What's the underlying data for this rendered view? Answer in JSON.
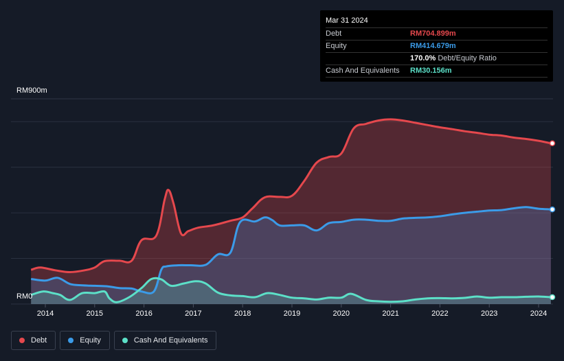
{
  "tooltip": {
    "date": "Mar 31 2024",
    "rows": [
      {
        "label": "Debt",
        "value": "RM704.899m",
        "color": "#e5484d"
      },
      {
        "label": "Equity",
        "value": "RM414.679m",
        "color": "#3b9be8"
      },
      {
        "label": "",
        "value": "170.0%",
        "unit": "Debt/Equity Ratio",
        "color": "#ffffff"
      },
      {
        "label": "Cash And Equivalents",
        "value": "RM30.156m",
        "color": "#5ce0c8"
      }
    ]
  },
  "legend": [
    {
      "label": "Debt",
      "color": "#e5484d"
    },
    {
      "label": "Equity",
      "color": "#3b9be8"
    },
    {
      "label": "Cash And Equivalents",
      "color": "#5ce0c8"
    }
  ],
  "chart_data": {
    "type": "area",
    "title": "",
    "ylabel": "",
    "xlabel": "",
    "y_top_label": "RM900m",
    "y_bottom_label": "RM0",
    "ylim": [
      0,
      900
    ],
    "xlim": [
      2013.3,
      2024.3
    ],
    "x_ticks": [
      2014,
      2015,
      2016,
      2017,
      2018,
      2019,
      2020,
      2021,
      2022,
      2023,
      2024
    ],
    "gridlines": [
      0,
      200,
      400,
      600,
      800
    ],
    "series": [
      {
        "name": "Debt",
        "color": "#e5484d",
        "x": [
          2013.71,
          2013.9,
          2014.2,
          2014.5,
          2014.8,
          2015.0,
          2015.2,
          2015.5,
          2015.75,
          2015.95,
          2016.25,
          2016.42,
          2016.5,
          2016.6,
          2016.75,
          2016.9,
          2017.1,
          2017.4,
          2017.75,
          2018.0,
          2018.2,
          2018.45,
          2018.75,
          2019.0,
          2019.25,
          2019.5,
          2019.75,
          2020.0,
          2020.25,
          2020.5,
          2020.75,
          2021.0,
          2021.25,
          2021.5,
          2021.75,
          2022.0,
          2022.25,
          2022.5,
          2022.75,
          2023.0,
          2023.25,
          2023.5,
          2023.75,
          2024.0,
          2024.25
        ],
        "values": [
          150,
          160,
          148,
          140,
          148,
          160,
          188,
          190,
          190,
          280,
          300,
          460,
          500,
          440,
          310,
          320,
          335,
          345,
          365,
          380,
          420,
          468,
          470,
          475,
          540,
          620,
          645,
          660,
          770,
          790,
          805,
          810,
          805,
          795,
          785,
          775,
          767,
          758,
          751,
          743,
          739,
          730,
          724,
          716,
          705
        ]
      },
      {
        "name": "Equity",
        "color": "#3b9be8",
        "x": [
          2013.71,
          2014.0,
          2014.25,
          2014.5,
          2014.75,
          2015.0,
          2015.25,
          2015.5,
          2015.75,
          2015.95,
          2016.2,
          2016.35,
          2016.45,
          2016.7,
          2016.95,
          2017.25,
          2017.5,
          2017.75,
          2017.95,
          2018.25,
          2018.45,
          2018.6,
          2018.75,
          2019.0,
          2019.25,
          2019.5,
          2019.75,
          2020.0,
          2020.25,
          2020.5,
          2020.75,
          2021.0,
          2021.25,
          2021.5,
          2021.75,
          2022.0,
          2022.25,
          2022.5,
          2022.75,
          2023.0,
          2023.25,
          2023.5,
          2023.75,
          2024.0,
          2024.25
        ],
        "values": [
          110,
          103,
          115,
          88,
          82,
          80,
          78,
          70,
          68,
          55,
          55,
          150,
          165,
          170,
          170,
          172,
          218,
          225,
          360,
          362,
          380,
          368,
          345,
          345,
          345,
          323,
          355,
          360,
          370,
          370,
          365,
          365,
          375,
          378,
          380,
          385,
          393,
          400,
          405,
          410,
          412,
          420,
          425,
          418,
          415
        ]
      },
      {
        "name": "Cash And Equivalents",
        "color": "#5ce0c8",
        "x": [
          2013.71,
          2013.95,
          2014.15,
          2014.3,
          2014.5,
          2014.75,
          2015.0,
          2015.2,
          2015.3,
          2015.45,
          2015.7,
          2015.95,
          2016.15,
          2016.35,
          2016.55,
          2016.8,
          2017.05,
          2017.25,
          2017.5,
          2017.75,
          2018.0,
          2018.25,
          2018.5,
          2018.75,
          2019.0,
          2019.25,
          2019.5,
          2019.75,
          2020.0,
          2020.2,
          2020.5,
          2020.75,
          2021.0,
          2021.25,
          2021.5,
          2021.75,
          2022.0,
          2022.25,
          2022.5,
          2022.75,
          2023.0,
          2023.25,
          2023.5,
          2023.75,
          2024.0,
          2024.25
        ],
        "values": [
          40,
          55,
          48,
          40,
          18,
          48,
          48,
          55,
          25,
          8,
          30,
          70,
          110,
          108,
          80,
          90,
          100,
          90,
          50,
          38,
          35,
          30,
          48,
          40,
          28,
          25,
          20,
          28,
          28,
          45,
          18,
          12,
          10,
          12,
          20,
          25,
          26,
          25,
          27,
          33,
          28,
          30,
          30,
          32,
          33,
          30
        ]
      }
    ]
  }
}
